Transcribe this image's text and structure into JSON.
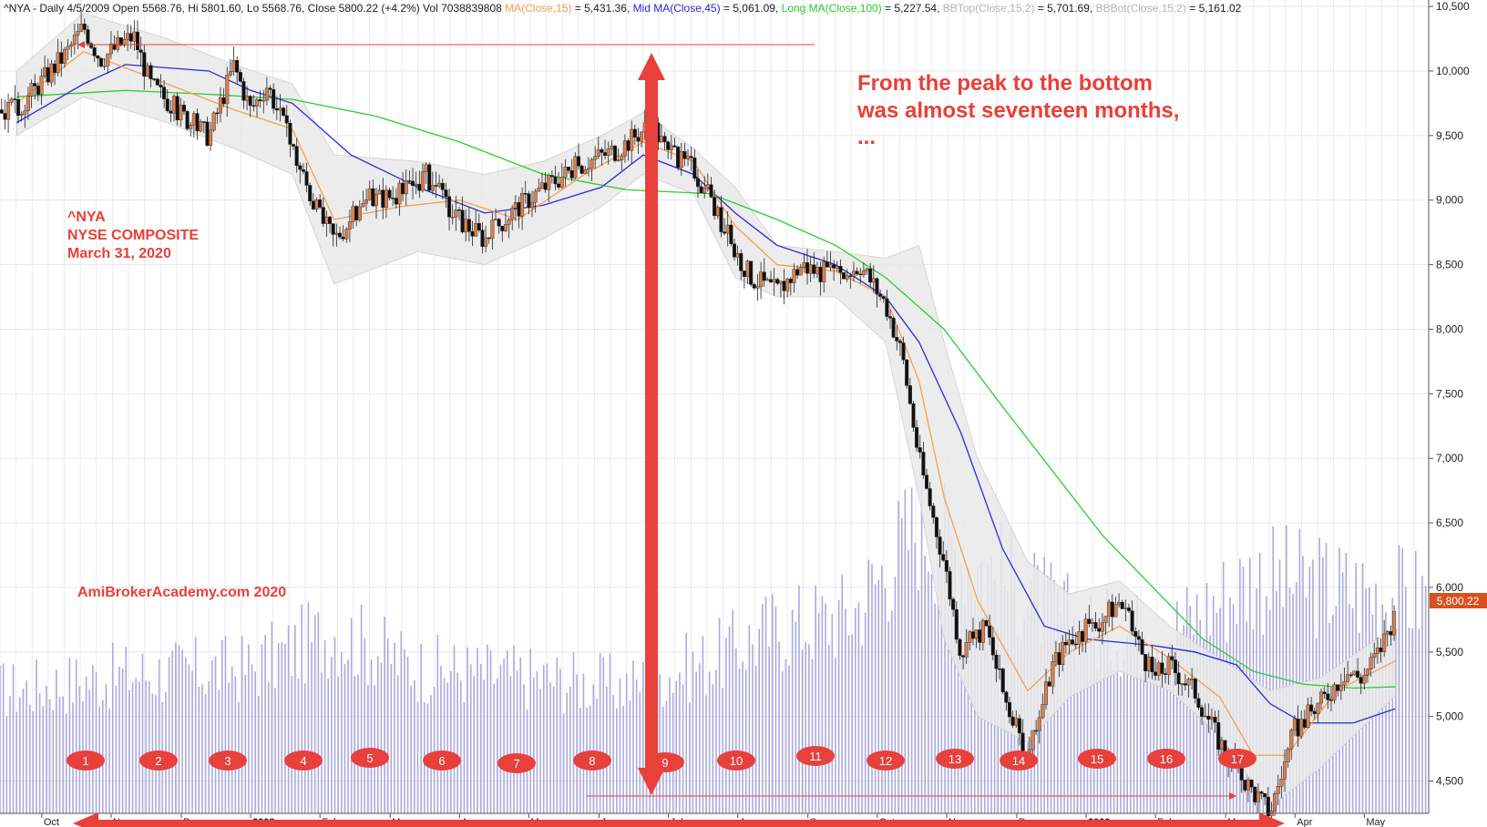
{
  "header": {
    "part1": "^NYA - Daily 4/5/2009 Open 5568.76, Hi 5801.60, Lo 5568.76, Close 5800.22 (+4.2%) Vol 7038839808 ",
    "ma_short_label": "MA(Close,15)",
    "ma_short_value": " = 5,431.36, ",
    "ma_mid_label": "Mid MA(Close,45)",
    "ma_mid_value": " = 5,061.09, ",
    "ma_long_label": "Long MA(Close,100)",
    "ma_long_value": " = 5,227.54, ",
    "bbtop_label": "BBTop(Close,15,2)",
    "bbtop_value": " = 5,701.69, ",
    "bbbot_label": "BBBot(Close,15,2)",
    "bbbot_value": " = 5,161.02"
  },
  "annotations": {
    "ticker": "^NYA",
    "index_name": "NYSE COMPOSITE",
    "date": "March 31, 2020",
    "watermark": "AmiBrokerAcademy.com   2020",
    "note_line1": "From the peak to the bottom",
    "note_line2": "was almost seventeen months,",
    "note_line3": "..."
  },
  "price_label": "5,800.22",
  "colors": {
    "ma_short": "#f5a050",
    "ma_mid": "#2a2ad8",
    "ma_long": "#2ccc2c",
    "bb_band": "#cfcfcf",
    "volume": "#aaaadd",
    "annotation": "#e8403a",
    "candle_up": "#d98050",
    "candle_down": "#111111",
    "grid": "#c8c8e0"
  },
  "month_markers": [
    "1",
    "2",
    "3",
    "4",
    "5",
    "6",
    "7",
    "8",
    "9",
    "10",
    "11",
    "12",
    "13",
    "14",
    "15",
    "16",
    "17"
  ],
  "chart_data": {
    "type": "candlestick",
    "symbol": "^NYA",
    "y_ticks": [
      4500,
      5000,
      5500,
      6000,
      6500,
      7000,
      7500,
      8000,
      8500,
      9000,
      9500,
      10000,
      10500
    ],
    "y_tick_labels": [
      "4,500",
      "5,000",
      "5,500",
      "6,000",
      "6,500",
      "7,000",
      "7,500",
      "8,000",
      "8,500",
      "9,000",
      "9,500",
      "10,000",
      "10,500"
    ],
    "ylim": [
      4250,
      10550
    ],
    "x_labels": [
      "Oct",
      "Nov",
      "Dec",
      "2008",
      "Feb",
      "Mar",
      "Apr",
      "May",
      "Jun",
      "Jul",
      "Aug",
      "Sep",
      "Oct",
      "Nov",
      "Dec",
      "2009",
      "Feb",
      "Mar",
      "Apr",
      "May"
    ],
    "x_label_year_flags": [
      false,
      false,
      false,
      true,
      false,
      false,
      false,
      false,
      false,
      false,
      false,
      false,
      false,
      false,
      false,
      true,
      false,
      false,
      false,
      false
    ],
    "close_path": [
      [
        2007.72,
        9700
      ],
      [
        2007.78,
        10150
      ],
      [
        2007.8,
        10350
      ],
      [
        2007.82,
        10100
      ],
      [
        2007.86,
        10280
      ],
      [
        2007.88,
        9900
      ],
      [
        2007.92,
        9650
      ],
      [
        2007.95,
        9500
      ],
      [
        2007.98,
        10050
      ],
      [
        2008.0,
        9700
      ],
      [
        2008.02,
        9900
      ],
      [
        2008.05,
        9400
      ],
      [
        2008.08,
        8900
      ],
      [
        2008.1,
        8700
      ],
      [
        2008.14,
        9000
      ],
      [
        2008.18,
        9050
      ],
      [
        2008.21,
        9200
      ],
      [
        2008.24,
        8900
      ],
      [
        2008.28,
        8700
      ],
      [
        2008.31,
        8900
      ],
      [
        2008.35,
        9100
      ],
      [
        2008.4,
        9300
      ],
      [
        2008.44,
        9400
      ],
      [
        2008.48,
        9600
      ],
      [
        2008.5,
        9350
      ],
      [
        2008.53,
        9250
      ],
      [
        2008.55,
        9000
      ],
      [
        2008.58,
        8600
      ],
      [
        2008.6,
        8400
      ],
      [
        2008.63,
        8300
      ],
      [
        2008.66,
        8500
      ],
      [
        2008.7,
        8400
      ],
      [
        2008.73,
        8500
      ],
      [
        2008.76,
        8200
      ],
      [
        2008.78,
        7800
      ],
      [
        2008.8,
        7000
      ],
      [
        2008.83,
        6200
      ],
      [
        2008.85,
        5500
      ],
      [
        2008.88,
        5700
      ],
      [
        2008.9,
        5200
      ],
      [
        2008.93,
        4650
      ],
      [
        2008.96,
        5400
      ],
      [
        2008.98,
        5600
      ],
      [
        2009.01,
        5700
      ],
      [
        2009.04,
        5900
      ],
      [
        2009.08,
        5300
      ],
      [
        2009.1,
        5400
      ],
      [
        2009.13,
        5200
      ],
      [
        2009.16,
        4800
      ],
      [
        2009.19,
        4500
      ],
      [
        2009.22,
        4260
      ],
      [
        2009.25,
        4900
      ],
      [
        2009.28,
        5100
      ],
      [
        2009.31,
        5350
      ],
      [
        2009.33,
        5300
      ],
      [
        2009.35,
        5500
      ],
      [
        2009.37,
        5800
      ]
    ],
    "ma_short": [
      [
        2007.72,
        9750
      ],
      [
        2007.8,
        10150
      ],
      [
        2007.9,
        9900
      ],
      [
        2007.98,
        9700
      ],
      [
        2008.05,
        9550
      ],
      [
        2008.1,
        8850
      ],
      [
        2008.18,
        8950
      ],
      [
        2008.25,
        9000
      ],
      [
        2008.32,
        8850
      ],
      [
        2008.4,
        9200
      ],
      [
        2008.47,
        9450
      ],
      [
        2008.53,
        9300
      ],
      [
        2008.58,
        8800
      ],
      [
        2008.63,
        8500
      ],
      [
        2008.7,
        8450
      ],
      [
        2008.76,
        8250
      ],
      [
        2008.8,
        7600
      ],
      [
        2008.83,
        6700
      ],
      [
        2008.87,
        5900
      ],
      [
        2008.93,
        5200
      ],
      [
        2008.98,
        5500
      ],
      [
        2009.04,
        5700
      ],
      [
        2009.1,
        5450
      ],
      [
        2009.16,
        5150
      ],
      [
        2009.2,
        4700
      ],
      [
        2009.24,
        4700
      ],
      [
        2009.3,
        5200
      ],
      [
        2009.37,
        5430
      ]
    ],
    "ma_mid": [
      [
        2007.72,
        9600
      ],
      [
        2007.8,
        9900
      ],
      [
        2007.85,
        10050
      ],
      [
        2007.95,
        10000
      ],
      [
        2008.0,
        9850
      ],
      [
        2008.05,
        9750
      ],
      [
        2008.12,
        9350
      ],
      [
        2008.2,
        9100
      ],
      [
        2008.28,
        8900
      ],
      [
        2008.35,
        8960
      ],
      [
        2008.42,
        9100
      ],
      [
        2008.47,
        9350
      ],
      [
        2008.53,
        9200
      ],
      [
        2008.58,
        8900
      ],
      [
        2008.63,
        8650
      ],
      [
        2008.7,
        8500
      ],
      [
        2008.76,
        8250
      ],
      [
        2008.8,
        7900
      ],
      [
        2008.85,
        7200
      ],
      [
        2008.9,
        6300
      ],
      [
        2008.95,
        5700
      ],
      [
        2009.0,
        5600
      ],
      [
        2009.08,
        5550
      ],
      [
        2009.13,
        5500
      ],
      [
        2009.18,
        5400
      ],
      [
        2009.22,
        5100
      ],
      [
        2009.26,
        4950
      ],
      [
        2009.32,
        4950
      ],
      [
        2009.37,
        5060
      ]
    ],
    "ma_long": [
      [
        2007.72,
        9800
      ],
      [
        2007.85,
        9850
      ],
      [
        2007.95,
        9820
      ],
      [
        2008.05,
        9780
      ],
      [
        2008.15,
        9650
      ],
      [
        2008.25,
        9450
      ],
      [
        2008.35,
        9200
      ],
      [
        2008.45,
        9080
      ],
      [
        2008.55,
        9050
      ],
      [
        2008.63,
        8850
      ],
      [
        2008.7,
        8650
      ],
      [
        2008.76,
        8400
      ],
      [
        2008.83,
        8000
      ],
      [
        2008.9,
        7400
      ],
      [
        2008.96,
        6900
      ],
      [
        2009.02,
        6400
      ],
      [
        2009.08,
        6000
      ],
      [
        2009.14,
        5600
      ],
      [
        2009.2,
        5350
      ],
      [
        2009.26,
        5250
      ],
      [
        2009.32,
        5220
      ],
      [
        2009.37,
        5230
      ]
    ],
    "bb_top": [
      [
        2007.72,
        10000
      ],
      [
        2007.8,
        10450
      ],
      [
        2007.9,
        10250
      ],
      [
        2007.98,
        10050
      ],
      [
        2008.05,
        9900
      ],
      [
        2008.1,
        9350
      ],
      [
        2008.2,
        9300
      ],
      [
        2008.28,
        9200
      ],
      [
        2008.35,
        9300
      ],
      [
        2008.42,
        9500
      ],
      [
        2008.47,
        9680
      ],
      [
        2008.53,
        9400
      ],
      [
        2008.58,
        9100
      ],
      [
        2008.63,
        8650
      ],
      [
        2008.7,
        8600
      ],
      [
        2008.76,
        8550
      ],
      [
        2008.8,
        8650
      ],
      [
        2008.83,
        7900
      ],
      [
        2008.87,
        7000
      ],
      [
        2008.93,
        6200
      ],
      [
        2008.98,
        5950
      ],
      [
        2009.04,
        6050
      ],
      [
        2009.1,
        5700
      ],
      [
        2009.16,
        5450
      ],
      [
        2009.22,
        5200
      ],
      [
        2009.28,
        5300
      ],
      [
        2009.37,
        5700
      ]
    ],
    "bb_bottom": [
      [
        2007.72,
        9500
      ],
      [
        2007.8,
        9800
      ],
      [
        2007.9,
        9600
      ],
      [
        2007.98,
        9400
      ],
      [
        2008.05,
        9200
      ],
      [
        2008.1,
        8350
      ],
      [
        2008.2,
        8600
      ],
      [
        2008.28,
        8500
      ],
      [
        2008.35,
        8700
      ],
      [
        2008.42,
        8950
      ],
      [
        2008.47,
        9200
      ],
      [
        2008.53,
        9050
      ],
      [
        2008.58,
        8400
      ],
      [
        2008.63,
        8250
      ],
      [
        2008.7,
        8250
      ],
      [
        2008.76,
        7900
      ],
      [
        2008.8,
        6700
      ],
      [
        2008.83,
        5600
      ],
      [
        2008.87,
        5000
      ],
      [
        2008.93,
        4800
      ],
      [
        2008.98,
        5150
      ],
      [
        2009.04,
        5350
      ],
      [
        2009.1,
        5200
      ],
      [
        2009.16,
        4850
      ],
      [
        2009.22,
        4300
      ],
      [
        2009.28,
        4600
      ],
      [
        2009.37,
        5160
      ]
    ],
    "volume_relative_levels": [
      [
        2007.72,
        0.34
      ],
      [
        2007.85,
        0.38
      ],
      [
        2008.0,
        0.4
      ],
      [
        2008.1,
        0.5
      ],
      [
        2008.2,
        0.4
      ],
      [
        2008.3,
        0.38
      ],
      [
        2008.45,
        0.35
      ],
      [
        2008.55,
        0.42
      ],
      [
        2008.62,
        0.5
      ],
      [
        2008.72,
        0.55
      ],
      [
        2008.8,
        0.8
      ],
      [
        2008.86,
        0.7
      ],
      [
        2008.9,
        0.65
      ],
      [
        2009.0,
        0.5
      ],
      [
        2009.1,
        0.5
      ],
      [
        2009.2,
        0.65
      ],
      [
        2009.3,
        0.62
      ],
      [
        2009.37,
        0.6
      ]
    ],
    "peak": {
      "x": 2007.8,
      "y": 10387
    },
    "bottom": {
      "x": 2009.22,
      "y": 4226
    },
    "last_close": 5800.22
  }
}
